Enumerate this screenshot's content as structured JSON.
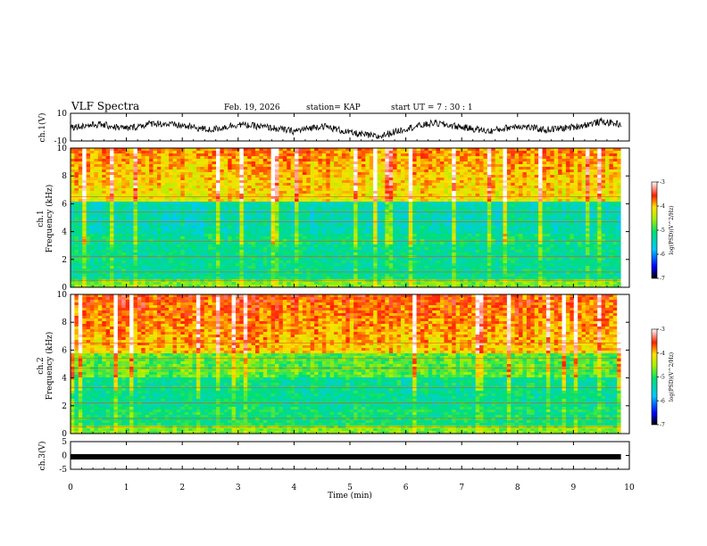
{
  "header": {
    "title": "VLF Spectra",
    "date": "Feb. 19, 2026",
    "station": "station= KAP",
    "start": "start  UT =   7 : 30 : 1"
  },
  "chart_data": [
    {
      "type": "line",
      "title": "VLF Spectra",
      "ylabel": "ch.1(V)",
      "ylim": [
        -10,
        10
      ],
      "y_ticks": [
        "10",
        "-10"
      ],
      "xlim": [
        0,
        10
      ],
      "xlabel": "Time (min)",
      "trace_approx": {
        "x": [
          0,
          0.5,
          1,
          1.5,
          2,
          2.5,
          3,
          3.5,
          4,
          4.5,
          5,
          5.5,
          6,
          6.5,
          7,
          7.5,
          8,
          8.5,
          9,
          9.5,
          9.85
        ],
        "y": [
          0,
          2,
          -1,
          3,
          1,
          -2,
          2,
          0,
          -3,
          1,
          -4,
          -7,
          -1,
          3,
          0,
          -3,
          1,
          -2,
          0,
          4,
          2
        ]
      }
    },
    {
      "type": "heatmap",
      "ylabel": "ch.1",
      "ylabel2": "Frequency (kHz)",
      "ylim": [
        0,
        10
      ],
      "y_ticks": [
        "0",
        "2",
        "4",
        "6",
        "8",
        "10"
      ],
      "xlim": [
        0,
        10
      ],
      "colorbar": {
        "label": "log(PSD)(V^2/Hz)",
        "range": [
          -7,
          -3
        ],
        "ticks": [
          "-3",
          "-4",
          "-5",
          "-6",
          "-7"
        ]
      }
    },
    {
      "type": "heatmap",
      "ylabel": "ch.2",
      "ylabel2": "Frequency (kHz)",
      "ylim": [
        0,
        10
      ],
      "y_ticks": [
        "0",
        "2",
        "4",
        "6",
        "8",
        "10"
      ],
      "xlim": [
        0,
        10
      ],
      "colorbar": {
        "label": "log(PSD)(V^2/Hz)",
        "range": [
          -7,
          -3
        ],
        "ticks": [
          "-3",
          "-4",
          "-5",
          "-6",
          "-7"
        ]
      }
    },
    {
      "type": "line",
      "ylabel": "ch.3(V)",
      "ylim": [
        -5,
        5
      ],
      "y_ticks": [
        "5",
        "0",
        "-5"
      ],
      "xlim": [
        0,
        10
      ],
      "constant_value": -0.5
    }
  ],
  "x_axis": {
    "label": "Time (min)",
    "ticks": [
      "0",
      "1",
      "2",
      "3",
      "4",
      "5",
      "6",
      "7",
      "8",
      "9",
      "10"
    ]
  }
}
